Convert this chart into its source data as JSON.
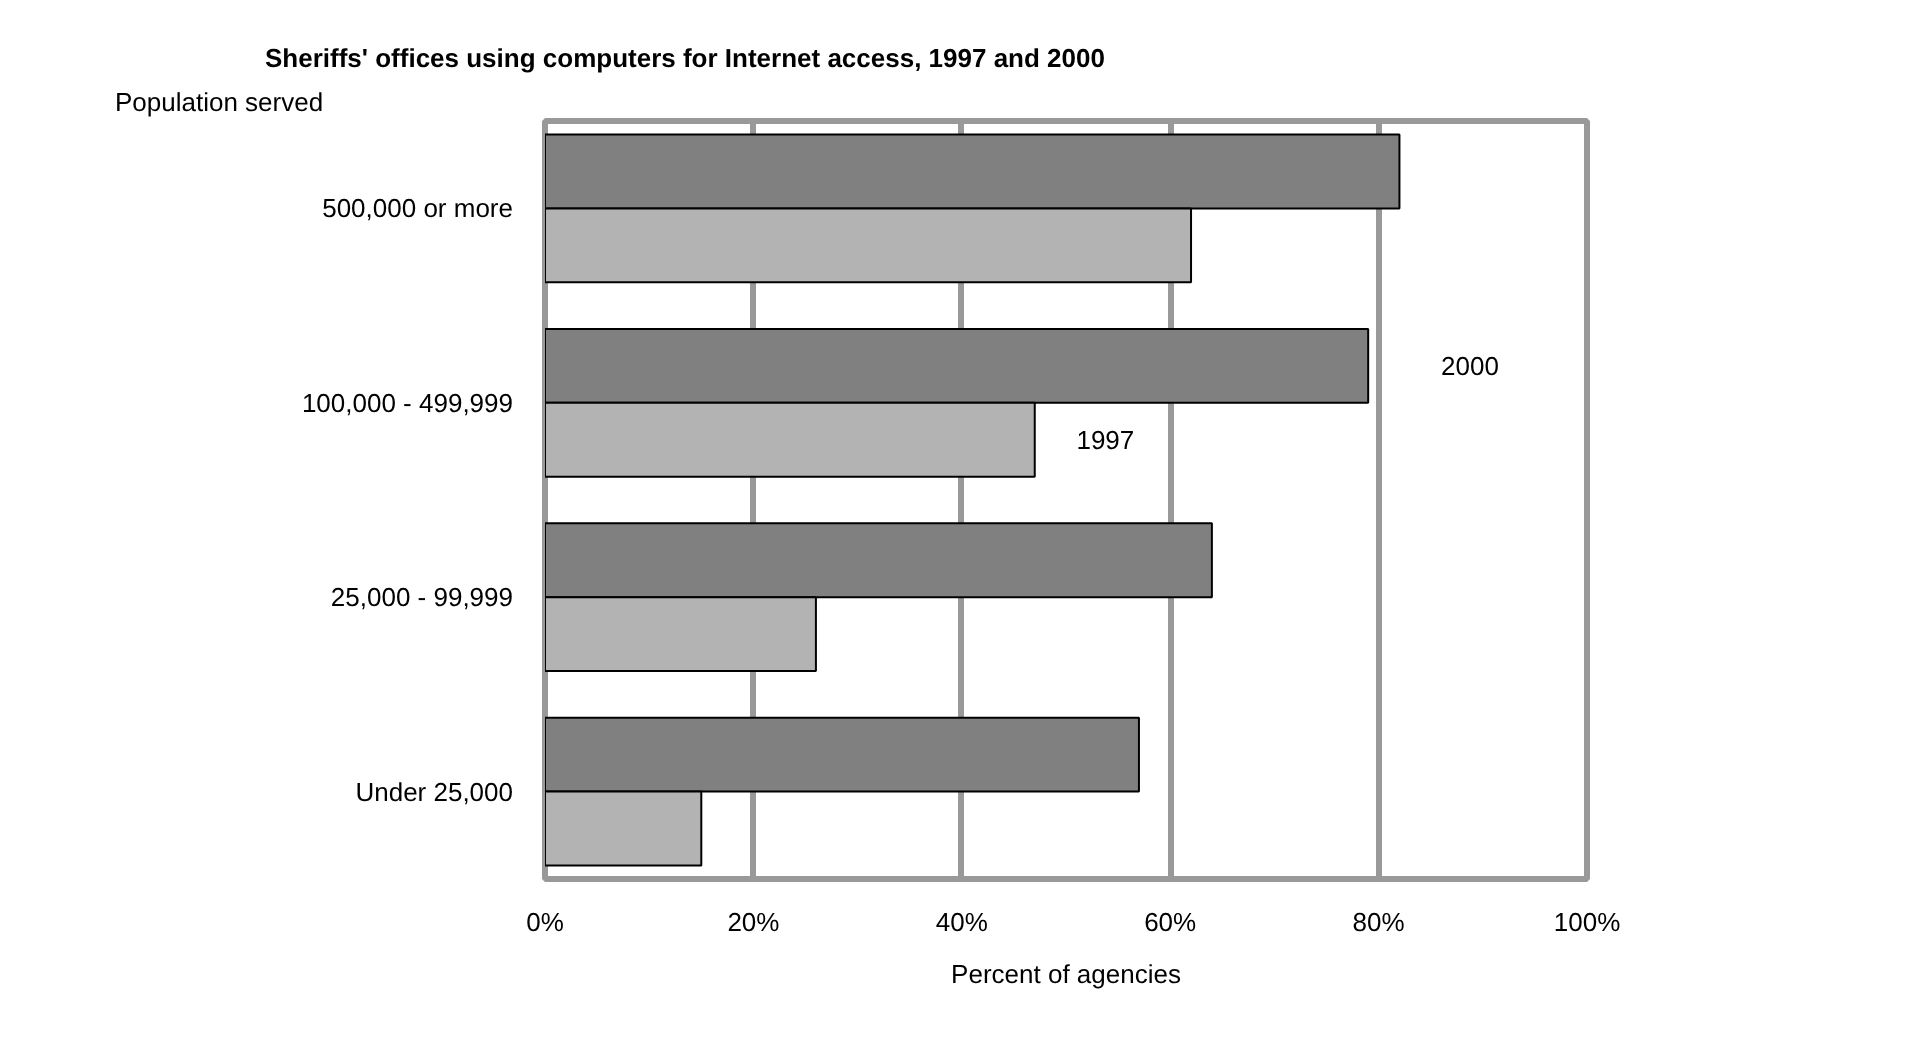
{
  "chart_data": {
    "type": "bar",
    "orientation": "horizontal",
    "title": "Sheriffs' offices using computers for Internet access, 1997 and 2000",
    "ylabel": "Population served",
    "xlabel": "Percent of agencies",
    "categories": [
      "500,000 or more",
      "100,000 - 499,999",
      "25,000 - 99,999",
      "Under 25,000"
    ],
    "series": [
      {
        "name": "2000",
        "color": "#808080",
        "values": [
          82,
          79,
          64,
          57
        ]
      },
      {
        "name": "1997",
        "color": "#b3b3b3",
        "values": [
          62,
          47,
          26,
          15
        ]
      }
    ],
    "xlim": [
      0,
      100
    ],
    "xticks": [
      {
        "value": 0,
        "label": "0%"
      },
      {
        "value": 20,
        "label": "20%"
      },
      {
        "value": 40,
        "label": "40%"
      },
      {
        "value": 60,
        "label": "60%"
      },
      {
        "value": 80,
        "label": "80%"
      },
      {
        "value": 100,
        "label": "100%"
      }
    ],
    "grid": "x",
    "legend": false
  }
}
